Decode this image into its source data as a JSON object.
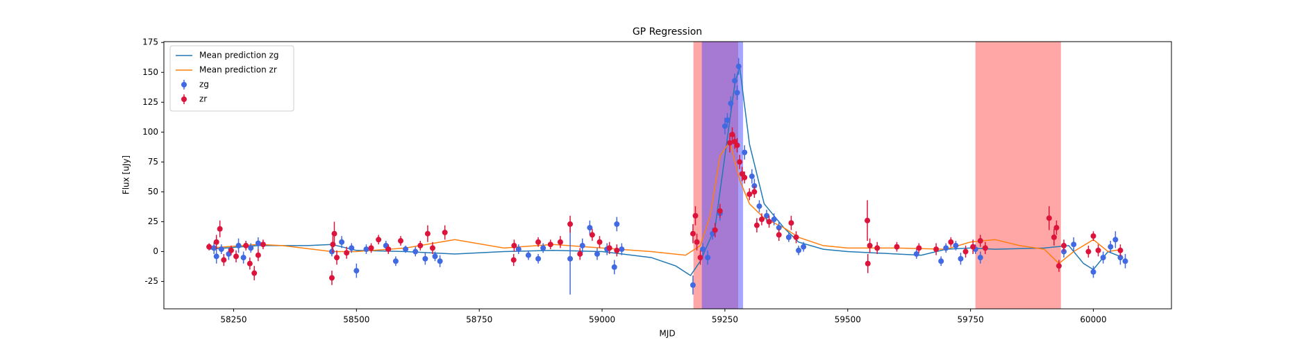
{
  "chart_data": {
    "type": "line",
    "title": "GP Regression",
    "xlabel": "MJD",
    "ylabel": "Flux [uJy]",
    "xlim": [
      58108,
      60159
    ],
    "ylim": [
      -47.9,
      175.7
    ],
    "xticks": [
      58250,
      58500,
      58750,
      59000,
      59250,
      59500,
      59750,
      60000
    ],
    "yticks": [
      -25,
      0,
      25,
      50,
      75,
      100,
      125,
      150,
      175
    ],
    "legend": "upper left",
    "spans": [
      {
        "x0": 59186,
        "x1": 59277,
        "color": "#ff4d4d"
      },
      {
        "x0": 59203,
        "x1": 59287,
        "color": "#4d4dff"
      },
      {
        "x0": 59760,
        "x1": 59934,
        "color": "#ff4d4d"
      }
    ],
    "series": [
      {
        "name": "Mean prediction zg",
        "kind": "line",
        "color": "#1f77b4",
        "x": [
          58200,
          58300,
          58400,
          58450,
          58500,
          58600,
          58700,
          58800,
          58900,
          59000,
          59100,
          59150,
          59180,
          59200,
          59230,
          59250,
          59270,
          59280,
          59300,
          59330,
          59370,
          59400,
          59450,
          59500,
          59600,
          59650,
          59700,
          59750,
          59800,
          59900,
          59950,
          59980,
          60000,
          60030,
          60060
        ],
        "values": [
          2,
          5,
          5,
          6,
          1,
          0,
          -2,
          0,
          1,
          0,
          -5,
          -12,
          -20,
          -8,
          20,
          80,
          140,
          155,
          90,
          40,
          20,
          8,
          2,
          0,
          -2,
          -3,
          2,
          3,
          2,
          3,
          5,
          -10,
          -15,
          0,
          -5
        ]
      },
      {
        "name": "Mean prediction zr",
        "kind": "line",
        "color": "#ff7f0e",
        "x": [
          58200,
          58300,
          58350,
          58450,
          58500,
          58600,
          58700,
          58800,
          58900,
          59000,
          59100,
          59170,
          59200,
          59220,
          59240,
          59260,
          59280,
          59300,
          59330,
          59370,
          59400,
          59450,
          59500,
          59600,
          59700,
          59750,
          59800,
          59850,
          59900,
          59930,
          59960,
          60000,
          60030,
          60060
        ],
        "values": [
          3,
          6,
          5,
          0,
          0,
          3,
          10,
          3,
          6,
          3,
          0,
          -3,
          5,
          30,
          80,
          92,
          60,
          40,
          28,
          20,
          12,
          5,
          3,
          3,
          2,
          8,
          10,
          5,
          2,
          -10,
          0,
          10,
          0,
          2
        ]
      },
      {
        "name": "zg",
        "kind": "errorbar",
        "color": "#4169e1",
        "x": [
          58210,
          58215,
          58225,
          58240,
          58260,
          58270,
          58285,
          58300,
          58450,
          58470,
          58490,
          58500,
          58520,
          58560,
          58580,
          58600,
          58620,
          58640,
          58660,
          58670,
          58830,
          58850,
          58870,
          58880,
          58935,
          58960,
          58975,
          58990,
          59010,
          59025,
          59030,
          59040,
          59185,
          59205,
          59215,
          59225,
          59240,
          59250,
          59255,
          59262,
          59270,
          59278,
          59275,
          59290,
          59305,
          59310,
          59320,
          59335,
          59350,
          59360,
          59380,
          59400,
          59410,
          59640,
          59690,
          59700,
          59720,
          59730,
          59760,
          59770,
          59940,
          59960,
          60000,
          60020,
          60035,
          60045,
          60055,
          60065
        ],
        "values": [
          3,
          -4,
          2,
          -2,
          5,
          -5,
          3,
          7,
          0,
          8,
          3,
          -16,
          2,
          5,
          -8,
          2,
          0,
          -6,
          -4,
          -8,
          2,
          -3,
          -6,
          3,
          -6,
          5,
          20,
          -2,
          2,
          -13,
          23,
          2,
          -28,
          2,
          -5,
          15,
          32,
          105,
          110,
          124,
          143,
          155,
          133,
          83,
          63,
          55,
          38,
          30,
          27,
          20,
          12,
          1,
          4,
          -2,
          -8,
          3,
          5,
          -6,
          2,
          -5,
          0,
          6,
          -17,
          -5,
          4,
          10,
          -5,
          -8
        ],
        "errors": [
          5,
          6,
          4,
          5,
          6,
          5,
          4,
          5,
          4,
          5,
          4,
          6,
          4,
          4,
          4,
          3,
          4,
          5,
          4,
          5,
          4,
          4,
          4,
          4,
          30,
          6,
          6,
          5,
          5,
          6,
          6,
          5,
          8,
          5,
          6,
          5,
          6,
          7,
          6,
          6,
          6,
          7,
          6,
          6,
          6,
          6,
          5,
          5,
          5,
          5,
          4,
          4,
          4,
          4,
          4,
          4,
          4,
          5,
          4,
          5,
          5,
          6,
          5,
          5,
          5,
          7,
          6,
          6
        ]
      },
      {
        "name": "zr",
        "kind": "errorbar",
        "color": "#dc143c",
        "x": [
          58200,
          58215,
          58222,
          58230,
          58245,
          58255,
          58275,
          58283,
          58292,
          58300,
          58310,
          58450,
          58452,
          58455,
          58460,
          58480,
          58530,
          58545,
          58565,
          58590,
          58630,
          58645,
          58655,
          58680,
          58820,
          58821,
          58870,
          58895,
          58915,
          58935,
          58955,
          58980,
          58995,
          59015,
          59030,
          59185,
          59190,
          59193,
          59200,
          59230,
          59240,
          59260,
          59265,
          59270,
          59275,
          59280,
          59285,
          59290,
          59300,
          59310,
          59315,
          59325,
          59340,
          59360,
          59385,
          59395,
          59540,
          59541,
          59545,
          59560,
          59600,
          59645,
          59680,
          59710,
          59740,
          59755,
          59770,
          59780,
          59910,
          59920,
          59925,
          59930,
          59940,
          59990,
          60000,
          60010,
          60055
        ],
        "values": [
          4,
          8,
          19,
          -7,
          1,
          -4,
          5,
          -10,
          -18,
          -3,
          6,
          -22,
          6,
          15,
          -5,
          -1,
          3,
          10,
          2,
          9,
          5,
          15,
          3,
          16,
          -7,
          5,
          8,
          6,
          8,
          23,
          -2,
          14,
          8,
          3,
          1,
          15,
          30,
          8,
          -5,
          18,
          34,
          91,
          98,
          92,
          89,
          75,
          65,
          62,
          48,
          50,
          22,
          27,
          25,
          14,
          24,
          12,
          26,
          -10,
          5,
          3,
          4,
          3,
          2,
          8,
          0,
          4,
          9,
          3,
          28,
          12,
          20,
          -12,
          5,
          0,
          13,
          1,
          1
        ],
        "errors": [
          3,
          6,
          7,
          5,
          4,
          5,
          4,
          5,
          6,
          5,
          4,
          6,
          7,
          10,
          6,
          5,
          4,
          4,
          4,
          4,
          4,
          7,
          5,
          6,
          5,
          5,
          4,
          4,
          5,
          7,
          5,
          5,
          5,
          5,
          5,
          8,
          8,
          7,
          6,
          6,
          6,
          8,
          6,
          6,
          6,
          6,
          6,
          5,
          5,
          5,
          6,
          5,
          5,
          5,
          6,
          5,
          17,
          8,
          6,
          5,
          4,
          4,
          5,
          4,
          5,
          6,
          5,
          5,
          10,
          7,
          6,
          5,
          5,
          5,
          4,
          5,
          5
        ]
      }
    ]
  }
}
